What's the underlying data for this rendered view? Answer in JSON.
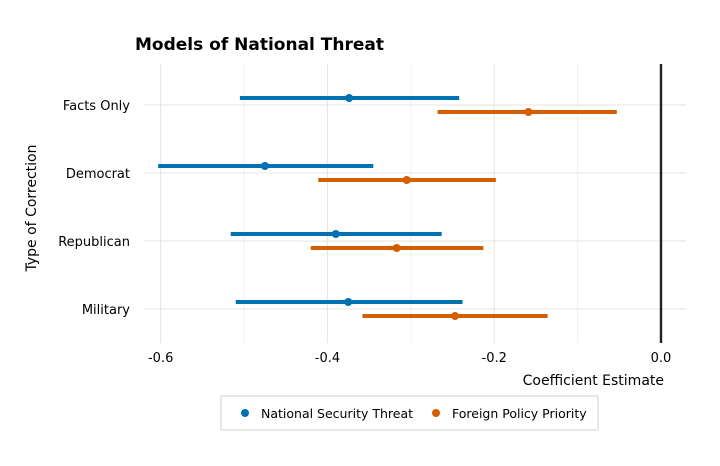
{
  "chart_data": {
    "type": "errorbar",
    "title": "Models of National Threat",
    "xlabel": "Coefficient Estimate",
    "ylabel": "Type of Correction",
    "xlim": [
      -0.62,
      0.03
    ],
    "xticks": [
      -0.6,
      -0.4,
      -0.2,
      0.0
    ],
    "xtick_labels": [
      "-0.6",
      "-0.4",
      "-0.2",
      "0.0"
    ],
    "reference_line": 0.0,
    "grid": true,
    "legend_position": "bottom",
    "categories": [
      "Facts Only",
      "Democrat",
      "Republican",
      "Military"
    ],
    "series": [
      {
        "name": "National Security Threat",
        "color": "#0072B2",
        "estimates": [
          -0.374,
          -0.475,
          -0.39,
          -0.375
        ],
        "lower": [
          -0.505,
          -0.603,
          -0.516,
          -0.51
        ],
        "upper": [
          -0.242,
          -0.345,
          -0.263,
          -0.238
        ]
      },
      {
        "name": "Foreign Policy Priority",
        "color": "#D55E00",
        "estimates": [
          -0.159,
          -0.305,
          -0.317,
          -0.247
        ],
        "lower": [
          -0.268,
          -0.411,
          -0.42,
          -0.358
        ],
        "upper": [
          -0.053,
          -0.198,
          -0.213,
          -0.136
        ]
      }
    ]
  }
}
